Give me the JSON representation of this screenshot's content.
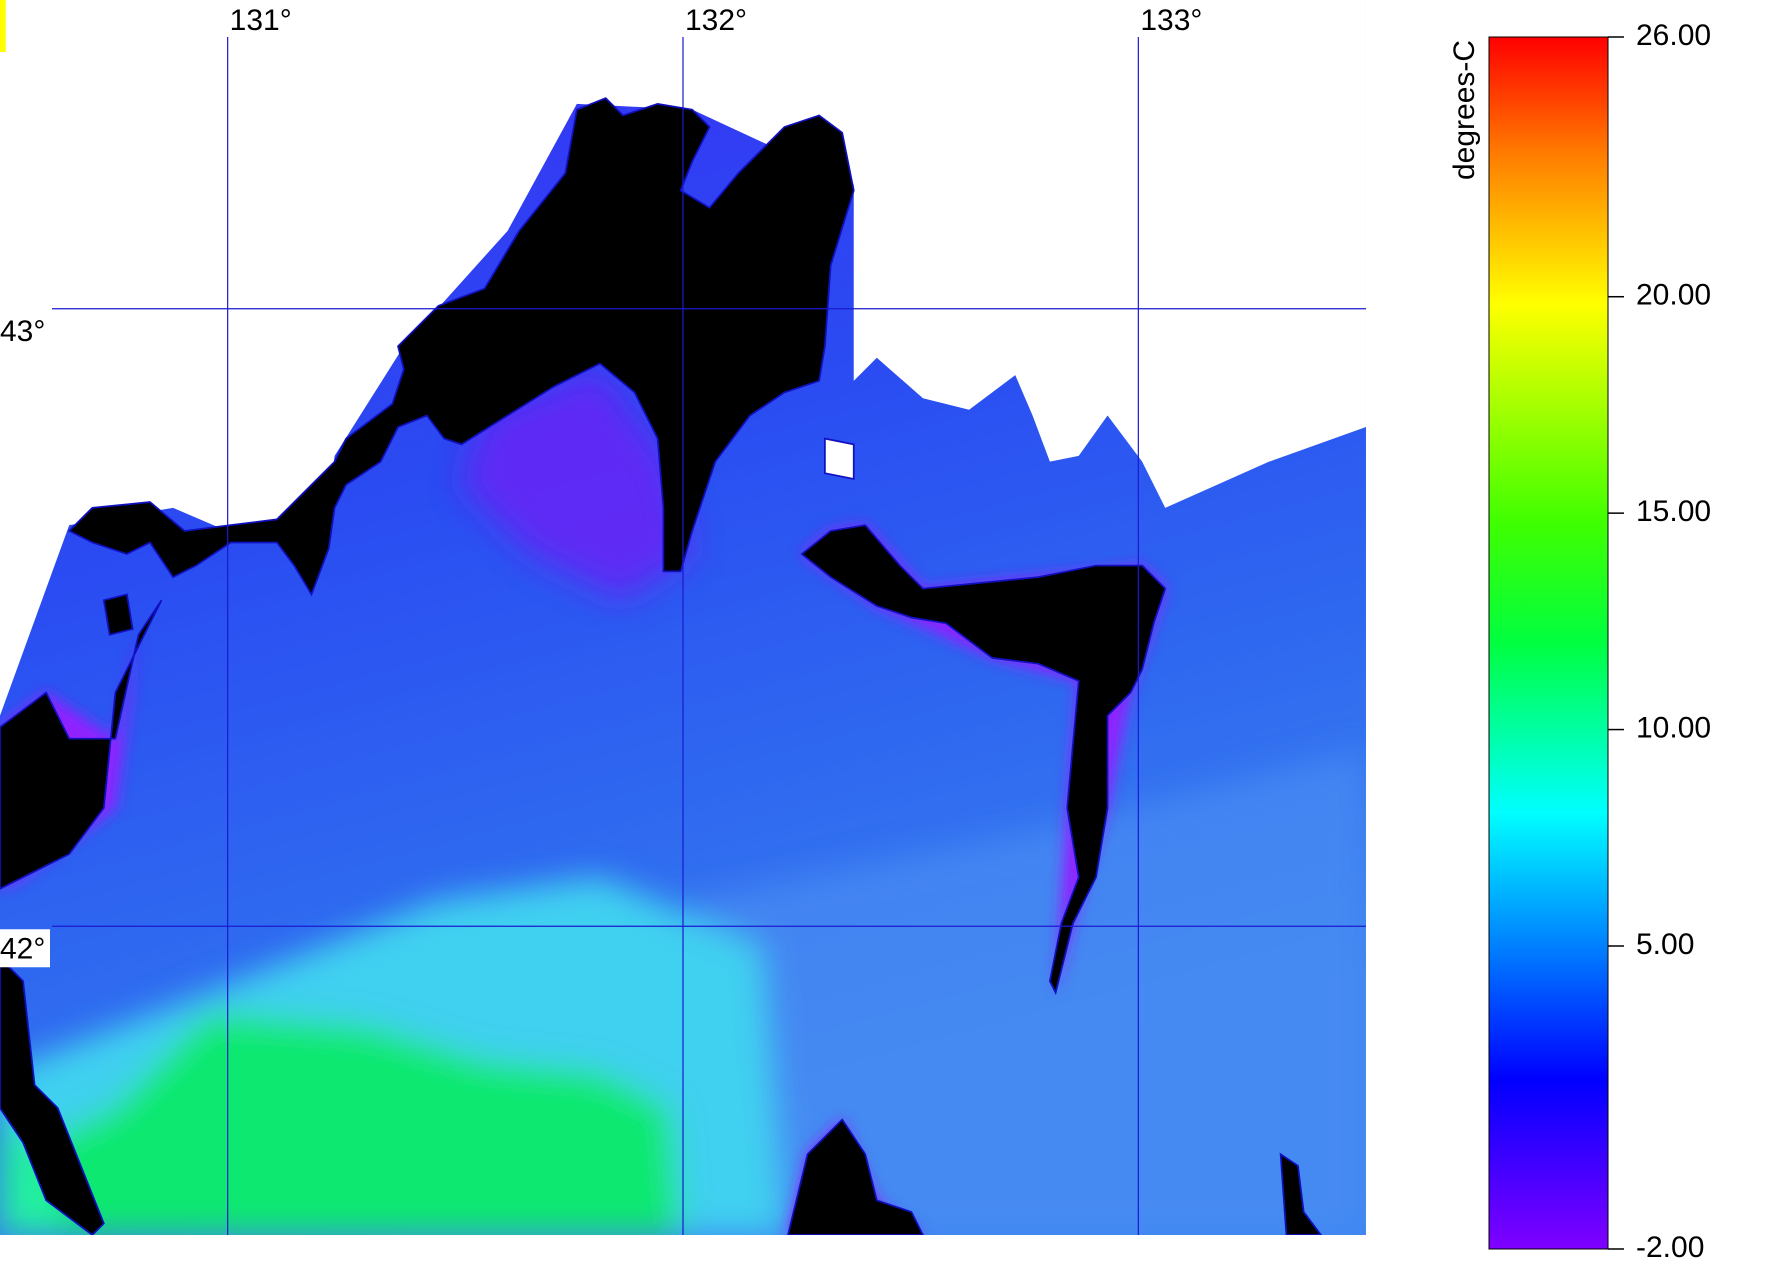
{
  "map": {
    "lon_ticks": [
      {
        "value": 131,
        "label": "131°"
      },
      {
        "value": 132,
        "label": "132°"
      },
      {
        "value": 133,
        "label": "133°"
      }
    ],
    "lat_ticks": [
      {
        "value": 43,
        "label": "43°"
      },
      {
        "value": 42,
        "label": "42°"
      }
    ],
    "xlim": [
      130.5,
      133.5
    ],
    "ylim": [
      41.5,
      43.5
    ]
  },
  "colorbar": {
    "unit": "degrees-C",
    "range": [
      -2,
      26
    ],
    "ticks": [
      {
        "value": 26,
        "label": "26.00"
      },
      {
        "value": 20,
        "label": "20.00"
      },
      {
        "value": 15,
        "label": "15.00"
      },
      {
        "value": 10,
        "label": "10.00"
      },
      {
        "value": 5,
        "label": "5.00"
      },
      {
        "value": -2,
        "label": "-2.00"
      }
    ]
  }
}
